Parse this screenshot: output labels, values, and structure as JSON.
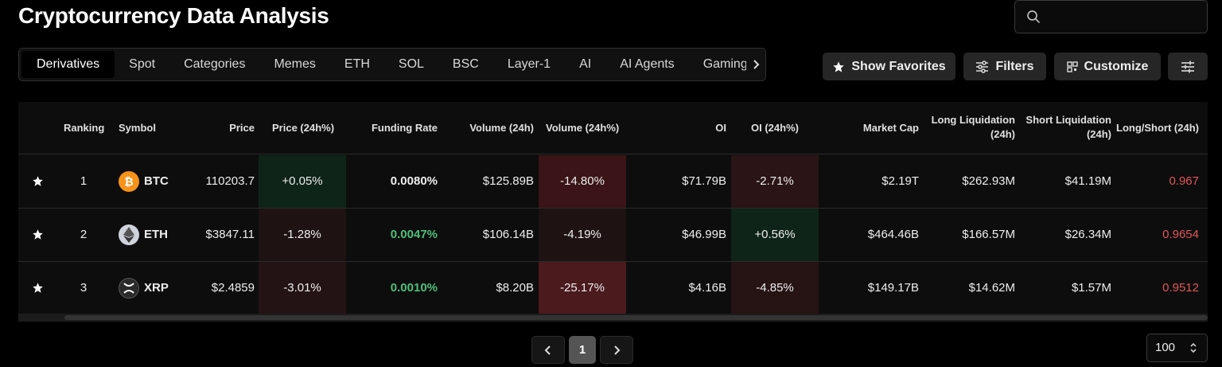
{
  "header": {
    "title": "Cryptocurrency Data Analysis",
    "search_placeholder": ""
  },
  "tabs": [
    "Derivatives",
    "Spot",
    "Categories",
    "Memes",
    "ETH",
    "SOL",
    "BSC",
    "Layer-1",
    "AI",
    "AI Agents",
    "Gaming"
  ],
  "active_tab": "Derivatives",
  "toolbar": {
    "favorites_label": "Show Favorites",
    "filters_label": "Filters",
    "customize_label": "Customize"
  },
  "columns": {
    "ranking": "Ranking",
    "symbol": "Symbol",
    "price": "Price",
    "price_change": "Price (24h%)",
    "funding_rate": "Funding Rate",
    "volume": "Volume (24h)",
    "volume_change": "Volume (24h%)",
    "oi": "OI",
    "oi_change": "OI (24h%)",
    "market_cap": "Market Cap",
    "long_liq_1": "Long Liquidation",
    "long_liq_2": "(24h)",
    "short_liq_1": "Short Liquidation",
    "short_liq_2": "(24h)",
    "long_short": "Long/Short (24h)"
  },
  "rows": [
    {
      "rank": "1",
      "symbol": "BTC",
      "price": "110203.7",
      "price_change": "+0.05%",
      "funding_rate": "0.0080%",
      "volume": "$125.89B",
      "volume_change": "-14.80%",
      "oi": "$71.79B",
      "oi_change": "-2.71%",
      "market_cap": "$2.19T",
      "long_liq": "$262.93M",
      "short_liq": "$41.19M",
      "long_short": "0.967"
    },
    {
      "rank": "2",
      "symbol": "ETH",
      "price": "$3847.11",
      "price_change": "-1.28%",
      "funding_rate": "0.0047%",
      "volume": "$106.14B",
      "volume_change": "-4.19%",
      "oi": "$46.99B",
      "oi_change": "+0.56%",
      "market_cap": "$464.46B",
      "long_liq": "$166.57M",
      "short_liq": "$26.34M",
      "long_short": "0.9654"
    },
    {
      "rank": "3",
      "symbol": "XRP",
      "price": "$2.4859",
      "price_change": "-3.01%",
      "funding_rate": "0.0010%",
      "volume": "$8.20B",
      "volume_change": "-25.17%",
      "oi": "$4.16B",
      "oi_change": "-4.85%",
      "market_cap": "$149.17B",
      "long_liq": "$14.62M",
      "short_liq": "$1.57M",
      "long_short": "0.9512"
    }
  ],
  "colors": {
    "positive": "#4fbf7a",
    "negative": "#e0575b",
    "neutral": "#eeeeee",
    "btc": "#f7931a",
    "eth": "#cfd3dc",
    "xrp": "#2a2a2a"
  },
  "pagination": {
    "current_page": "1",
    "per_page": "100"
  }
}
